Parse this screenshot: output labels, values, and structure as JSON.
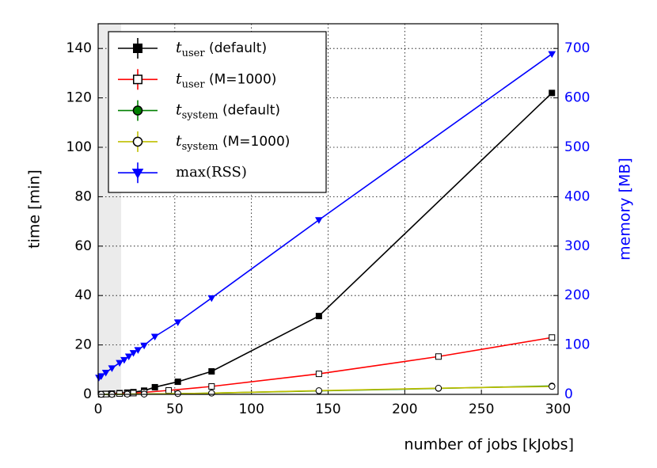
{
  "chart_data": {
    "type": "line",
    "xlabel": "number of jobs [kJobs]",
    "ylabel": "time [min]",
    "y2label": "memory [MB]",
    "y2color": "#0000ff",
    "xlim": [
      0,
      300
    ],
    "xticks": [
      0,
      50,
      100,
      150,
      200,
      250,
      300
    ],
    "ylim": [
      0,
      150
    ],
    "yticks": [
      0,
      20,
      40,
      60,
      80,
      100,
      120,
      140
    ],
    "y2lim": [
      0,
      750
    ],
    "y2ticks": [
      0,
      100,
      200,
      300,
      400,
      500,
      600,
      700
    ],
    "grid": true,
    "legend": "upper left",
    "shaded_span": [
      0,
      15
    ],
    "series": [
      {
        "name": "t",
        "name_sub": "user",
        "name_suffix": " (default)",
        "color": "#000000",
        "marker": "square",
        "marker_fill": "#000000",
        "x": [
          2,
          5,
          9,
          14,
          19,
          23,
          30,
          37,
          52,
          74,
          144,
          296
        ],
        "values": [
          0.1,
          0.2,
          0.3,
          0.5,
          0.7,
          0.9,
          1.5,
          2.9,
          5.1,
          9.3,
          31.7,
          122
        ]
      },
      {
        "name": "t",
        "name_sub": "user",
        "name_suffix": " (M=1000)",
        "color": "#ff0000",
        "marker": "square",
        "marker_fill": "#ffffff",
        "x": [
          2,
          5,
          9,
          14,
          19,
          23,
          30,
          46,
          74,
          144,
          222,
          296
        ],
        "values": [
          0.05,
          0.1,
          0.2,
          0.3,
          0.4,
          0.5,
          0.8,
          1.6,
          3.2,
          8.3,
          15.3,
          23
        ]
      },
      {
        "name": "t",
        "name_sub": "system",
        "name_suffix": " (default)",
        "color": "#008000",
        "marker": "circle",
        "marker_fill": "#008000",
        "x": [
          2,
          9,
          19,
          30,
          52,
          74,
          144,
          222,
          296
        ],
        "values": [
          0,
          0,
          0.1,
          0.1,
          0.3,
          0.5,
          1.4,
          2.4,
          3.4
        ]
      },
      {
        "name": "t",
        "name_sub": "system",
        "name_suffix": " (M=1000)",
        "color": "#bfbf00",
        "marker": "circle",
        "marker_fill": "#ffffff",
        "x": [
          2,
          9,
          19,
          30,
          52,
          74,
          144,
          222,
          296
        ],
        "values": [
          0,
          0,
          0.1,
          0.1,
          0.3,
          0.5,
          1.5,
          2.5,
          3.2
        ]
      },
      {
        "name": "max(RSS)",
        "color": "#0000ff",
        "marker": "triangle-down",
        "marker_fill": "#0000ff",
        "axis": "y2",
        "x": [
          0.5,
          2,
          5,
          9,
          14,
          17,
          20,
          23,
          26,
          30,
          37,
          52,
          74,
          144,
          296
        ],
        "values": [
          34,
          37,
          44,
          53,
          64,
          70,
          77,
          84,
          90,
          99,
          117,
          146,
          195,
          353,
          689
        ]
      }
    ]
  }
}
